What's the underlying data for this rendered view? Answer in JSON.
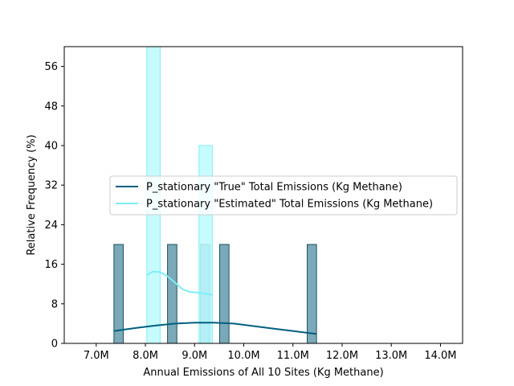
{
  "chart_data": {
    "type": "histogram",
    "xlabel": "Annual Emissions of All 10 Sites (Kg Methane)",
    "ylabel": "Relative Frequency (%)",
    "xlim": [
      6.35,
      14.45
    ],
    "ylim": [
      0,
      60
    ],
    "x_ticks": [
      7.0,
      8.0,
      9.0,
      10.0,
      11.0,
      12.0,
      13.0,
      14.0
    ],
    "x_tick_labels": [
      "7.0M",
      "8.0M",
      "9.0M",
      "10.0M",
      "11.0M",
      "12.0M",
      "13.0M",
      "14.0M"
    ],
    "y_ticks": [
      0,
      8,
      16,
      24,
      32,
      40,
      48,
      56
    ],
    "y_tick_labels": [
      "0",
      "8",
      "16",
      "24",
      "32",
      "40",
      "48",
      "56"
    ],
    "legend_position": "center-right",
    "series": [
      {
        "name": "P_stationary \"True\" Total Emissions (Kg Methane)",
        "color": "#005f7f",
        "bar_fill": "#7aa9b8",
        "bins": [
          {
            "x0": 7.36,
            "x1": 7.55,
            "value": 20
          },
          {
            "x0": 8.45,
            "x1": 8.64,
            "value": 20
          },
          {
            "x0": 9.12,
            "x1": 9.31,
            "value": 20
          },
          {
            "x0": 9.51,
            "x1": 9.7,
            "value": 20
          },
          {
            "x0": 11.29,
            "x1": 11.48,
            "value": 20
          }
        ],
        "kde": {
          "x": [
            7.36,
            7.8,
            8.2,
            8.6,
            9.0,
            9.4,
            9.8,
            10.2,
            10.6,
            11.0,
            11.48
          ],
          "y": [
            2.5,
            3.1,
            3.6,
            4.0,
            4.2,
            4.2,
            4.0,
            3.5,
            3.0,
            2.5,
            1.9
          ]
        }
      },
      {
        "name": "P_stationary \"Estimated\" Total Emissions (Kg Methane)",
        "color": "#7eeef7",
        "bar_fill": "#bdfbff",
        "bins": [
          {
            "x0": 8.03,
            "x1": 8.3,
            "value": 60
          },
          {
            "x0": 9.09,
            "x1": 9.36,
            "value": 40
          }
        ],
        "kde": {
          "x": [
            8.03,
            8.15,
            8.3,
            8.45,
            8.6,
            8.75,
            8.9,
            9.05,
            9.2,
            9.36
          ],
          "y": [
            13.8,
            14.5,
            14.4,
            13.6,
            12.3,
            11.0,
            10.4,
            10.3,
            10.1,
            9.8
          ]
        }
      }
    ]
  }
}
